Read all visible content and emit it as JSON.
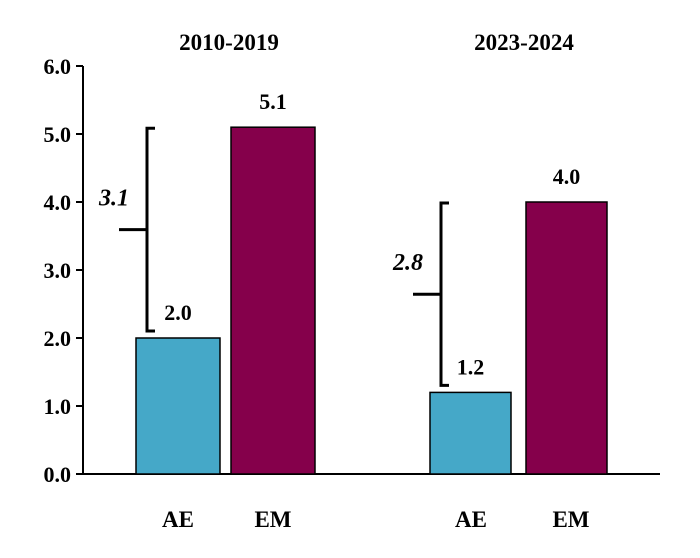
{
  "chart_data": {
    "type": "bar",
    "ylim": [
      0,
      6
    ],
    "yticks": [
      "0.0",
      "1.0",
      "2.0",
      "3.0",
      "4.0",
      "5.0",
      "6.0"
    ],
    "grid": false,
    "groups": [
      {
        "label": "2010-2019",
        "bars": [
          {
            "category": "AE",
            "value": 2.0,
            "label": "2.0",
            "color": "#45a8c8"
          },
          {
            "category": "EM",
            "value": 5.1,
            "label": "5.1",
            "color": "#85004b"
          }
        ],
        "gap": {
          "value": 3.1,
          "label": "3.1"
        }
      },
      {
        "label": "2023-2024",
        "bars": [
          {
            "category": "AE",
            "value": 1.2,
            "label": "1.2",
            "color": "#45a8c8"
          },
          {
            "category": "EM",
            "value": 4.0,
            "label": "4.0",
            "color": "#85004b"
          }
        ],
        "gap": {
          "value": 2.8,
          "label": "2.8"
        }
      }
    ]
  }
}
